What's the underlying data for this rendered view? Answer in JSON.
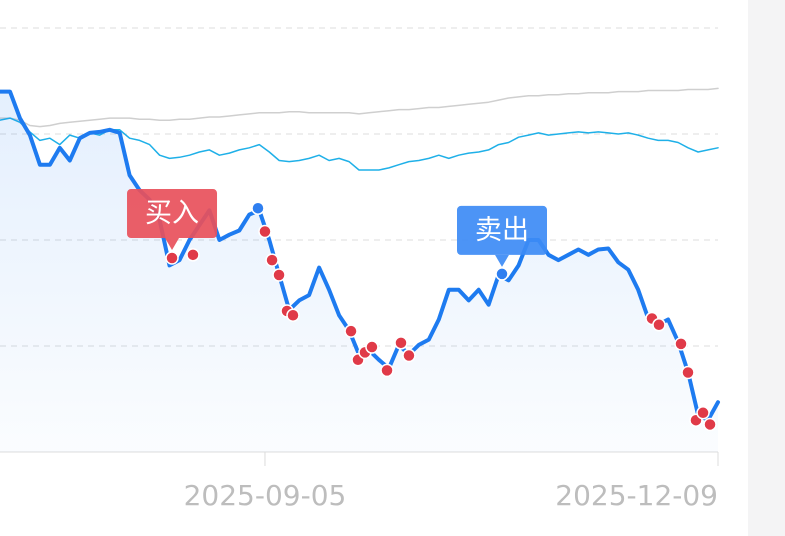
{
  "chart_data": {
    "type": "line",
    "x": [
      0,
      1,
      2,
      3,
      4,
      5,
      6,
      7,
      8,
      9,
      10,
      11,
      12,
      13,
      14,
      15,
      16,
      17,
      18,
      19,
      20,
      21,
      22,
      23,
      24,
      25,
      26,
      27,
      28,
      29,
      30,
      31,
      32,
      33,
      34,
      35,
      36,
      37,
      38,
      39,
      40,
      41,
      42,
      43,
      44,
      45,
      46,
      47,
      48,
      49,
      50,
      51,
      52,
      53,
      54,
      55,
      56,
      57,
      58,
      59,
      60,
      61,
      62,
      63,
      64,
      65,
      66,
      67,
      68,
      69,
      70,
      71,
      72
    ],
    "xlim": [
      0,
      72
    ],
    "xticks": [
      {
        "value": 26.57,
        "label": "2025-09-05"
      },
      {
        "value": 72,
        "label": "2025-12-09"
      }
    ],
    "ylim": [
      0,
      4
    ],
    "yticks": [
      0,
      1,
      2,
      3,
      4
    ],
    "grid": true,
    "series": [
      {
        "color": "#cfcfcf",
        "values": [
          3.15,
          3.15,
          3.13,
          3.08,
          3.07,
          3.08,
          3.1,
          3.11,
          3.12,
          3.13,
          3.14,
          3.15,
          3.15,
          3.15,
          3.14,
          3.14,
          3.13,
          3.13,
          3.14,
          3.14,
          3.15,
          3.16,
          3.16,
          3.17,
          3.18,
          3.19,
          3.2,
          3.2,
          3.2,
          3.21,
          3.21,
          3.2,
          3.2,
          3.2,
          3.2,
          3.2,
          3.19,
          3.2,
          3.21,
          3.22,
          3.23,
          3.23,
          3.24,
          3.25,
          3.25,
          3.26,
          3.27,
          3.28,
          3.29,
          3.3,
          3.32,
          3.34,
          3.35,
          3.36,
          3.36,
          3.37,
          3.37,
          3.38,
          3.38,
          3.39,
          3.39,
          3.39,
          3.4,
          3.4,
          3.4,
          3.41,
          3.41,
          3.41,
          3.41,
          3.42,
          3.42,
          3.42,
          3.43
        ]
      },
      {
        "color": "#1fb0e8",
        "values": [
          3.13,
          3.15,
          3.11,
          3.02,
          2.94,
          2.96,
          2.9,
          2.99,
          2.96,
          3.01,
          2.99,
          3.04,
          3.04,
          2.96,
          2.94,
          2.9,
          2.8,
          2.77,
          2.78,
          2.8,
          2.83,
          2.85,
          2.8,
          2.82,
          2.85,
          2.87,
          2.9,
          2.83,
          2.75,
          2.74,
          2.75,
          2.77,
          2.8,
          2.75,
          2.77,
          2.74,
          2.66,
          2.66,
          2.66,
          2.68,
          2.71,
          2.74,
          2.75,
          2.77,
          2.8,
          2.77,
          2.8,
          2.82,
          2.83,
          2.85,
          2.9,
          2.92,
          2.97,
          2.99,
          3.01,
          2.99,
          3.0,
          3.01,
          3.02,
          3.01,
          3.02,
          3.01,
          3.0,
          3.01,
          2.99,
          2.96,
          2.94,
          2.94,
          2.92,
          2.87,
          2.83,
          2.85,
          2.87
        ]
      },
      {
        "color": "#1e7bf0",
        "area": true,
        "values": [
          3.4,
          3.4,
          3.15,
          2.99,
          2.71,
          2.71,
          2.87,
          2.75,
          2.96,
          3.01,
          3.02,
          3.04,
          3.01,
          2.61,
          2.47,
          2.38,
          2.19,
          1.76,
          1.81,
          2.0,
          2.14,
          2.28,
          2.0,
          2.05,
          2.09,
          2.24,
          2.28,
          2.0,
          1.67,
          1.34,
          1.43,
          1.48,
          1.74,
          1.53,
          1.29,
          1.15,
          0.92,
          0.96,
          0.87,
          0.79,
          1.01,
          0.92,
          1.01,
          1.06,
          1.25,
          1.53,
          1.53,
          1.43,
          1.53,
          1.39,
          1.67,
          1.62,
          1.76,
          2.0,
          2.0,
          1.86,
          1.81,
          1.86,
          1.91,
          1.86,
          1.91,
          1.92,
          1.79,
          1.72,
          1.53,
          1.26,
          1.2,
          1.25,
          1.04,
          0.75,
          0.35,
          0.3,
          0.47
        ]
      }
    ],
    "buy_points": {
      "color": "#e03a48",
      "x": [
        17.25,
        19.35,
        26.57,
        27.28,
        27.98,
        28.78,
        29.38,
        35.2,
        35.9,
        36.6,
        37.3,
        38.81,
        40.21,
        41.01,
        65.38,
        66.08,
        68.29,
        68.99,
        69.79,
        70.5,
        71.2
      ],
      "y": [
        1.83,
        1.86,
        2.08,
        1.81,
        1.67,
        1.33,
        1.29,
        1.14,
        0.87,
        0.94,
        0.99,
        0.77,
        1.03,
        0.91,
        1.26,
        1.2,
        1.02,
        0.75,
        0.3,
        0.37,
        0.26
      ]
    },
    "sell_points": {
      "color": "#2f7ff0",
      "x": [
        25.87,
        50.34
      ],
      "y": [
        2.3,
        1.68
      ]
    },
    "annotations": [
      {
        "text": "买入",
        "x": 17.25,
        "y": 1.83,
        "color": "#e8505b",
        "offset": 1
      },
      {
        "text": "卖出",
        "x": 50.34,
        "y": 1.68,
        "color": "#3d8bf5",
        "offset": 0
      }
    ]
  }
}
